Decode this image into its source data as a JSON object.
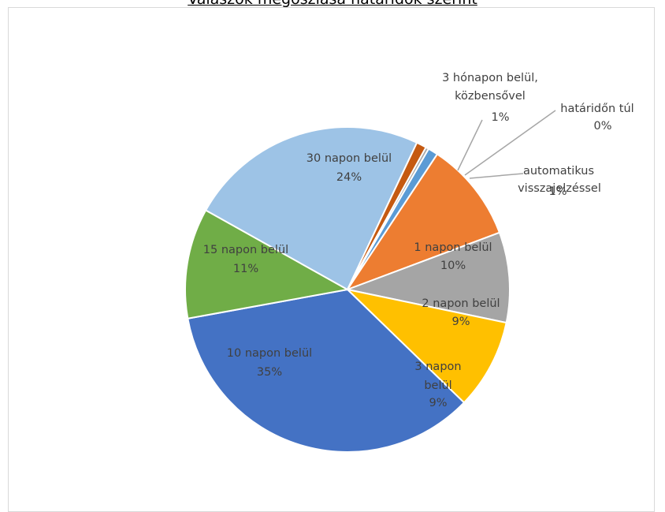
{
  "chart_data": {
    "type": "pie",
    "title": "Válaszok megoszlása határidők szerint",
    "slices": [
      {
        "label": "automatikus visszajelzéssel",
        "value": 1,
        "pct_label": "1%",
        "color": "#5b9bd5"
      },
      {
        "label": "1 napon belül",
        "value": 10,
        "pct_label": "10%",
        "color": "#ed7d31"
      },
      {
        "label": "2 napon belül",
        "value": 9,
        "pct_label": "9%",
        "color": "#a5a5a5"
      },
      {
        "label": "3 napon belül",
        "value": 9,
        "pct_label": "9%",
        "color": "#ffc000"
      },
      {
        "label": "10 napon belül",
        "value": 35,
        "pct_label": "35%",
        "color": "#4472c4"
      },
      {
        "label": "15 napon belül",
        "value": 11,
        "pct_label": "11%",
        "color": "#70ad47"
      },
      {
        "label": "30 napon belül",
        "value": 24,
        "pct_label": "24%",
        "color": "#9dc3e6"
      },
      {
        "label": "3 hónapon belül, közbensővel",
        "value": 1,
        "pct_label": "1%",
        "color": "#c55a11"
      },
      {
        "label": "határidőn túl",
        "value": 0.3,
        "pct_label": "0%",
        "color": "#a9a9a9"
      }
    ],
    "legend": "none"
  }
}
